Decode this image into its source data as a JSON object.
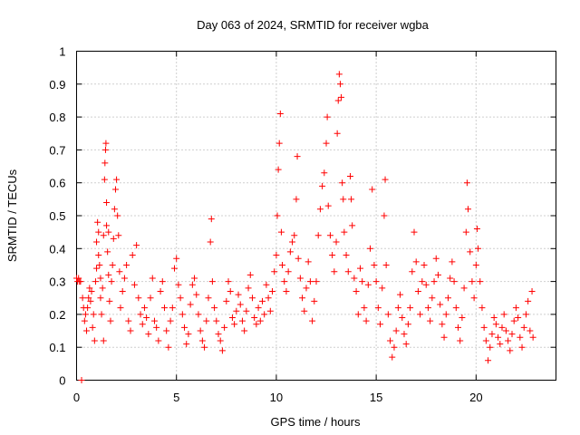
{
  "chart_data": {
    "type": "scatter",
    "title": "Day 063 of 2024, SRMTID for receiver wgba",
    "xlabel": "GPS time / hours",
    "ylabel": "SRMTID / TECUs",
    "xlim": [
      0,
      24
    ],
    "ylim": [
      0,
      1
    ],
    "xticks": [
      0,
      5,
      10,
      15,
      20
    ],
    "xtick_labels": [
      "0",
      "5",
      "10",
      "15",
      "20"
    ],
    "yticks": [
      0,
      0.1,
      0.2,
      0.3,
      0.4,
      0.5,
      0.6,
      0.7,
      0.8,
      0.9,
      1
    ],
    "ytick_labels": [
      "0",
      "0.1",
      "0.2",
      "0.3",
      "0.4",
      "0.5",
      "0.6",
      "0.7",
      "0.8",
      "0.9",
      "1"
    ],
    "grid": true,
    "marker": "plus",
    "color": "#ff0000",
    "series": [
      {
        "name": "SRMTID",
        "points": [
          [
            0.0,
            0.31
          ],
          [
            0.05,
            0.3
          ],
          [
            0.1,
            0.31
          ],
          [
            0.15,
            0.3
          ],
          [
            0.2,
            0.3
          ],
          [
            0.25,
            0.0
          ],
          [
            0.3,
            0.25
          ],
          [
            0.35,
            0.22
          ],
          [
            0.4,
            0.18
          ],
          [
            0.45,
            0.2
          ],
          [
            0.5,
            0.15
          ],
          [
            0.55,
            0.22
          ],
          [
            0.6,
            0.25
          ],
          [
            0.65,
            0.28
          ],
          [
            0.7,
            0.24
          ],
          [
            0.75,
            0.27
          ],
          [
            0.8,
            0.16
          ],
          [
            0.85,
            0.2
          ],
          [
            0.9,
            0.12
          ],
          [
            0.95,
            0.3
          ],
          [
            1.0,
            0.34
          ],
          [
            1.0,
            0.42
          ],
          [
            1.05,
            0.48
          ],
          [
            1.1,
            0.45
          ],
          [
            1.1,
            0.38
          ],
          [
            1.15,
            0.35
          ],
          [
            1.2,
            0.25
          ],
          [
            1.2,
            0.31
          ],
          [
            1.25,
            0.2
          ],
          [
            1.3,
            0.28
          ],
          [
            1.35,
            0.12
          ],
          [
            1.35,
            0.44
          ],
          [
            1.4,
            0.61
          ],
          [
            1.42,
            0.66
          ],
          [
            1.45,
            0.7
          ],
          [
            1.47,
            0.72
          ],
          [
            1.5,
            0.54
          ],
          [
            1.5,
            0.47
          ],
          [
            1.55,
            0.39
          ],
          [
            1.6,
            0.45
          ],
          [
            1.6,
            0.32
          ],
          [
            1.65,
            0.24
          ],
          [
            1.7,
            0.18
          ],
          [
            1.75,
            0.3
          ],
          [
            1.8,
            0.35
          ],
          [
            1.85,
            0.43
          ],
          [
            1.9,
            0.52
          ],
          [
            1.95,
            0.58
          ],
          [
            2.0,
            0.61
          ],
          [
            2.05,
            0.5
          ],
          [
            2.1,
            0.44
          ],
          [
            2.15,
            0.33
          ],
          [
            2.2,
            0.22
          ],
          [
            2.3,
            0.27
          ],
          [
            2.4,
            0.31
          ],
          [
            2.5,
            0.35
          ],
          [
            2.6,
            0.18
          ],
          [
            2.7,
            0.15
          ],
          [
            2.8,
            0.38
          ],
          [
            2.9,
            0.29
          ],
          [
            3.0,
            0.41
          ],
          [
            3.1,
            0.25
          ],
          [
            3.2,
            0.2
          ],
          [
            3.3,
            0.17
          ],
          [
            3.4,
            0.22
          ],
          [
            3.5,
            0.19
          ],
          [
            3.6,
            0.14
          ],
          [
            3.7,
            0.25
          ],
          [
            3.8,
            0.31
          ],
          [
            3.9,
            0.18
          ],
          [
            4.0,
            0.16
          ],
          [
            4.1,
            0.12
          ],
          [
            4.2,
            0.27
          ],
          [
            4.3,
            0.3
          ],
          [
            4.4,
            0.22
          ],
          [
            4.5,
            0.15
          ],
          [
            4.6,
            0.1
          ],
          [
            4.7,
            0.18
          ],
          [
            4.8,
            0.22
          ],
          [
            4.9,
            0.34
          ],
          [
            5.0,
            0.37
          ],
          [
            5.1,
            0.29
          ],
          [
            5.2,
            0.25
          ],
          [
            5.3,
            0.2
          ],
          [
            5.4,
            0.16
          ],
          [
            5.5,
            0.11
          ],
          [
            5.6,
            0.14
          ],
          [
            5.7,
            0.23
          ],
          [
            5.8,
            0.29
          ],
          [
            5.9,
            0.31
          ],
          [
            6.0,
            0.26
          ],
          [
            6.1,
            0.2
          ],
          [
            6.2,
            0.15
          ],
          [
            6.3,
            0.12
          ],
          [
            6.4,
            0.1
          ],
          [
            6.5,
            0.18
          ],
          [
            6.6,
            0.25
          ],
          [
            6.7,
            0.42
          ],
          [
            6.75,
            0.49
          ],
          [
            6.8,
            0.3
          ],
          [
            6.9,
            0.22
          ],
          [
            7.0,
            0.18
          ],
          [
            7.1,
            0.14
          ],
          [
            7.2,
            0.12
          ],
          [
            7.3,
            0.09
          ],
          [
            7.4,
            0.16
          ],
          [
            7.5,
            0.24
          ],
          [
            7.6,
            0.3
          ],
          [
            7.7,
            0.27
          ],
          [
            7.8,
            0.19
          ],
          [
            7.9,
            0.17
          ],
          [
            8.0,
            0.21
          ],
          [
            8.1,
            0.26
          ],
          [
            8.2,
            0.23
          ],
          [
            8.3,
            0.18
          ],
          [
            8.4,
            0.15
          ],
          [
            8.5,
            0.21
          ],
          [
            8.6,
            0.28
          ],
          [
            8.7,
            0.32
          ],
          [
            8.8,
            0.25
          ],
          [
            8.9,
            0.19
          ],
          [
            9.0,
            0.17
          ],
          [
            9.1,
            0.22
          ],
          [
            9.2,
            0.18
          ],
          [
            9.3,
            0.24
          ],
          [
            9.4,
            0.2
          ],
          [
            9.5,
            0.29
          ],
          [
            9.6,
            0.25
          ],
          [
            9.7,
            0.21
          ],
          [
            9.8,
            0.27
          ],
          [
            9.9,
            0.33
          ],
          [
            10.0,
            0.38
          ],
          [
            10.05,
            0.5
          ],
          [
            10.1,
            0.64
          ],
          [
            10.15,
            0.72
          ],
          [
            10.2,
            0.81
          ],
          [
            10.25,
            0.45
          ],
          [
            10.3,
            0.35
          ],
          [
            10.4,
            0.3
          ],
          [
            10.5,
            0.27
          ],
          [
            10.6,
            0.33
          ],
          [
            10.7,
            0.39
          ],
          [
            10.8,
            0.42
          ],
          [
            10.9,
            0.44
          ],
          [
            11.0,
            0.55
          ],
          [
            11.05,
            0.68
          ],
          [
            11.1,
            0.37
          ],
          [
            11.2,
            0.31
          ],
          [
            11.3,
            0.25
          ],
          [
            11.4,
            0.21
          ],
          [
            11.5,
            0.28
          ],
          [
            11.6,
            0.36
          ],
          [
            11.7,
            0.3
          ],
          [
            11.8,
            0.18
          ],
          [
            11.9,
            0.24
          ],
          [
            12.0,
            0.3
          ],
          [
            12.1,
            0.44
          ],
          [
            12.2,
            0.52
          ],
          [
            12.3,
            0.59
          ],
          [
            12.4,
            0.63
          ],
          [
            12.5,
            0.72
          ],
          [
            12.55,
            0.8
          ],
          [
            12.6,
            0.53
          ],
          [
            12.7,
            0.44
          ],
          [
            12.8,
            0.38
          ],
          [
            12.9,
            0.33
          ],
          [
            13.0,
            0.42
          ],
          [
            13.05,
            0.75
          ],
          [
            13.1,
            0.85
          ],
          [
            13.15,
            0.93
          ],
          [
            13.2,
            0.9
          ],
          [
            13.25,
            0.86
          ],
          [
            13.3,
            0.6
          ],
          [
            13.35,
            0.55
          ],
          [
            13.4,
            0.45
          ],
          [
            13.5,
            0.38
          ],
          [
            13.6,
            0.33
          ],
          [
            13.7,
            0.62
          ],
          [
            13.75,
            0.55
          ],
          [
            13.8,
            0.47
          ],
          [
            13.9,
            0.31
          ],
          [
            14.0,
            0.27
          ],
          [
            14.1,
            0.2
          ],
          [
            14.2,
            0.34
          ],
          [
            14.3,
            0.3
          ],
          [
            14.4,
            0.22
          ],
          [
            14.5,
            0.18
          ],
          [
            14.6,
            0.29
          ],
          [
            14.7,
            0.4
          ],
          [
            14.8,
            0.58
          ],
          [
            14.9,
            0.35
          ],
          [
            15.0,
            0.3
          ],
          [
            15.1,
            0.22
          ],
          [
            15.2,
            0.17
          ],
          [
            15.3,
            0.28
          ],
          [
            15.4,
            0.5
          ],
          [
            15.45,
            0.61
          ],
          [
            15.5,
            0.35
          ],
          [
            15.6,
            0.2
          ],
          [
            15.7,
            0.12
          ],
          [
            15.8,
            0.07
          ],
          [
            15.9,
            0.1
          ],
          [
            16.0,
            0.15
          ],
          [
            16.1,
            0.22
          ],
          [
            16.2,
            0.26
          ],
          [
            16.3,
            0.19
          ],
          [
            16.4,
            0.14
          ],
          [
            16.5,
            0.11
          ],
          [
            16.6,
            0.17
          ],
          [
            16.7,
            0.22
          ],
          [
            16.8,
            0.33
          ],
          [
            16.9,
            0.45
          ],
          [
            17.0,
            0.36
          ],
          [
            17.1,
            0.27
          ],
          [
            17.2,
            0.2
          ],
          [
            17.3,
            0.3
          ],
          [
            17.4,
            0.35
          ],
          [
            17.5,
            0.29
          ],
          [
            17.6,
            0.22
          ],
          [
            17.7,
            0.18
          ],
          [
            17.8,
            0.25
          ],
          [
            17.9,
            0.3
          ],
          [
            18.0,
            0.37
          ],
          [
            18.1,
            0.32
          ],
          [
            18.2,
            0.23
          ],
          [
            18.3,
            0.17
          ],
          [
            18.4,
            0.13
          ],
          [
            18.5,
            0.2
          ],
          [
            18.6,
            0.25
          ],
          [
            18.7,
            0.31
          ],
          [
            18.8,
            0.36
          ],
          [
            18.9,
            0.3
          ],
          [
            19.0,
            0.22
          ],
          [
            19.1,
            0.16
          ],
          [
            19.2,
            0.12
          ],
          [
            19.3,
            0.19
          ],
          [
            19.4,
            0.28
          ],
          [
            19.5,
            0.45
          ],
          [
            19.55,
            0.6
          ],
          [
            19.6,
            0.52
          ],
          [
            19.7,
            0.39
          ],
          [
            19.8,
            0.3
          ],
          [
            19.9,
            0.25
          ],
          [
            20.0,
            0.35
          ],
          [
            20.05,
            0.46
          ],
          [
            20.1,
            0.4
          ],
          [
            20.2,
            0.3
          ],
          [
            20.3,
            0.22
          ],
          [
            20.4,
            0.16
          ],
          [
            20.5,
            0.12
          ],
          [
            20.6,
            0.06
          ],
          [
            20.7,
            0.1
          ],
          [
            20.8,
            0.14
          ],
          [
            20.9,
            0.19
          ],
          [
            21.0,
            0.17
          ],
          [
            21.1,
            0.13
          ],
          [
            21.2,
            0.11
          ],
          [
            21.3,
            0.16
          ],
          [
            21.4,
            0.2
          ],
          [
            21.5,
            0.15
          ],
          [
            21.6,
            0.12
          ],
          [
            21.7,
            0.09
          ],
          [
            21.8,
            0.14
          ],
          [
            21.9,
            0.18
          ],
          [
            22.0,
            0.22
          ],
          [
            22.1,
            0.19
          ],
          [
            22.2,
            0.13
          ],
          [
            22.3,
            0.1
          ],
          [
            22.4,
            0.16
          ],
          [
            22.5,
            0.2
          ],
          [
            22.6,
            0.24
          ],
          [
            22.7,
            0.15
          ],
          [
            22.8,
            0.27
          ],
          [
            22.85,
            0.13
          ]
        ]
      }
    ]
  }
}
